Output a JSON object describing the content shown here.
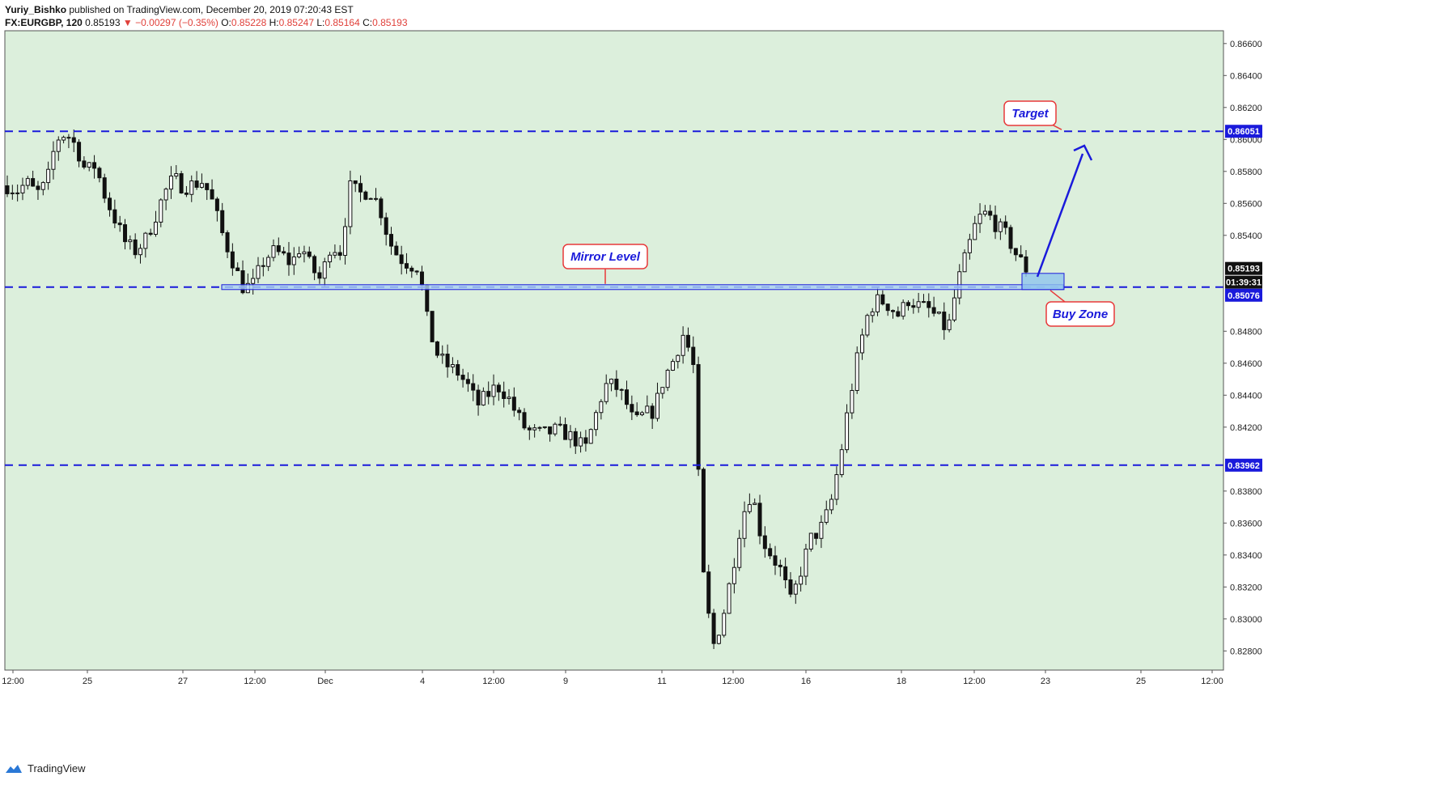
{
  "header": {
    "author": "Yuriy_Bishko",
    "published": "published on TradingView.com, December 20, 2019 07:20:43 EST",
    "symbol": "FX:EURGBP, 120",
    "last": "0.85193",
    "change_arrow": "▼",
    "change": "−0.00297 (−0.35%)",
    "o_label": "O:",
    "o": "0.85228",
    "h_label": "H:",
    "h": "0.85247",
    "l_label": "L:",
    "l": "0.85164",
    "c_label": "C:",
    "c": "0.85193"
  },
  "footer": {
    "brand": "TradingView",
    "logo_icon": "tradingview-logo-icon"
  },
  "colors": {
    "plot_bg": "#dcefdc",
    "level_line": "#1a1adb",
    "annotation_border": "#e8393a",
    "annotation_text": "#1a1adb",
    "candle": "#111111",
    "zone_fill": "#8ec4ee"
  },
  "chart_data": {
    "type": "candlestick",
    "symbol": "EURGBP",
    "timeframe": "120",
    "ylim": [
      0.8268,
      0.8668
    ],
    "y_ticks": [
      "0.86600",
      "0.86400",
      "0.86200",
      "0.86000",
      "0.85800",
      "0.85600",
      "0.85400",
      "0.84800",
      "0.84600",
      "0.84400",
      "0.84200",
      "0.83800",
      "0.83600",
      "0.83400",
      "0.83200",
      "0.83000",
      "0.82800"
    ],
    "x_ticks": [
      "12:00",
      "25",
      "27",
      "12:00",
      "Dec",
      "4",
      "12:00",
      "9",
      "11",
      "12:00",
      "16",
      "18",
      "12:00",
      "23",
      "25",
      "12:00"
    ],
    "price_labels": [
      {
        "value": "0.86051",
        "highlight": true
      },
      {
        "value": "0.85193",
        "highlight": false
      },
      {
        "value": "01:39:31",
        "highlight": false
      },
      {
        "value": "0.85076",
        "highlight": true
      },
      {
        "value": "0.83962",
        "highlight": true
      }
    ],
    "levels": [
      0.86051,
      0.85076,
      0.83962
    ],
    "annotations": {
      "target": "Target",
      "mirror": "Mirror Level",
      "buy_zone": "Buy Zone"
    },
    "close_path": [
      0.8571,
      0.8568,
      0.8573,
      0.8566,
      0.8572,
      0.86,
      0.8604,
      0.8596,
      0.858,
      0.8584,
      0.8564,
      0.855,
      0.8536,
      0.853,
      0.8536,
      0.855,
      0.8566,
      0.8576,
      0.857,
      0.8572,
      0.8574,
      0.856,
      0.854,
      0.8524,
      0.8508,
      0.8508,
      0.8522,
      0.853,
      0.8528,
      0.8522,
      0.8534,
      0.852,
      0.8512,
      0.8534,
      0.853,
      0.857,
      0.8566,
      0.8568,
      0.8558,
      0.8536,
      0.8526,
      0.8522,
      0.852,
      0.8482,
      0.8464,
      0.8458,
      0.8454,
      0.8446,
      0.8434,
      0.844,
      0.8446,
      0.844,
      0.8428,
      0.8418,
      0.8416,
      0.8416,
      0.8418,
      0.8416,
      0.8412,
      0.8406,
      0.8426,
      0.8446,
      0.8446,
      0.8438,
      0.8422,
      0.8428,
      0.843,
      0.845,
      0.8462,
      0.8478,
      0.8462,
      0.833,
      0.8282,
      0.83,
      0.833,
      0.8364,
      0.838,
      0.835,
      0.834,
      0.833,
      0.831,
      0.833,
      0.835,
      0.8356,
      0.837,
      0.84,
      0.8438,
      0.847,
      0.8494,
      0.85,
      0.8496,
      0.849,
      0.85,
      0.8496,
      0.8494,
      0.8488,
      0.848,
      0.851,
      0.853,
      0.855,
      0.8554,
      0.8546,
      0.854,
      0.8528,
      0.8519
    ]
  }
}
